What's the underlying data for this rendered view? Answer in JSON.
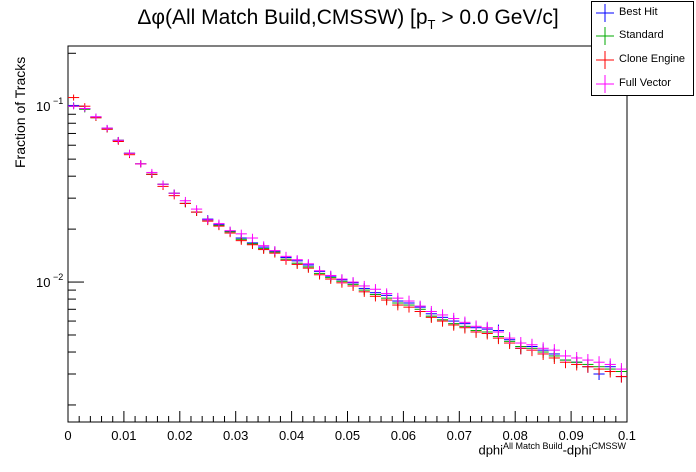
{
  "chart_data": {
    "type": "scatter",
    "title_main": "Δφ(All Match Build,CMSSW) [p",
    "title_sub": "T",
    "title_rest": " > 0.0 GeV/c]",
    "xlabel_base": "dphi",
    "xlabel_sup1": "All Match Build",
    "xlabel_mid": "-dphi",
    "xlabel_sup2": "CMSSW",
    "ylabel": "Fraction of Tracks",
    "x_ticks": [
      "0",
      "0.01",
      "0.02",
      "0.03",
      "0.04",
      "0.05",
      "0.06",
      "0.07",
      "0.08",
      "0.09",
      "0.1"
    ],
    "y_ticks": [
      "10",
      "10"
    ],
    "y_tick_exps": [
      "−1",
      "−2"
    ],
    "xlim": [
      0,
      0.1
    ],
    "ylim": [
      0.0016,
      0.22
    ],
    "log_y": true,
    "bin_width": 0.002,
    "x": [
      0.001,
      0.003,
      0.005,
      0.007,
      0.009,
      0.011,
      0.013,
      0.015,
      0.017,
      0.019,
      0.021,
      0.023,
      0.025,
      0.027,
      0.029,
      0.031,
      0.033,
      0.035,
      0.037,
      0.039,
      0.041,
      0.043,
      0.045,
      0.047,
      0.049,
      0.051,
      0.053,
      0.055,
      0.057,
      0.059,
      0.061,
      0.063,
      0.065,
      0.067,
      0.069,
      0.071,
      0.073,
      0.075,
      0.077,
      0.079,
      0.081,
      0.083,
      0.085,
      0.087,
      0.089,
      0.091,
      0.093,
      0.095,
      0.097,
      0.099
    ],
    "series": [
      {
        "name": "Best Hit",
        "color": "#0000ff",
        "values": [
          0.101,
          0.097,
          0.087,
          0.075,
          0.064,
          0.054,
          0.047,
          0.041,
          0.036,
          0.032,
          0.028,
          0.025,
          0.0228,
          0.0212,
          0.0195,
          0.0178,
          0.0167,
          0.0158,
          0.015,
          0.0138,
          0.0132,
          0.0125,
          0.0115,
          0.0108,
          0.0103,
          0.0099,
          0.0092,
          0.0087,
          0.0084,
          0.0078,
          0.0076,
          0.0072,
          0.0066,
          0.0063,
          0.006,
          0.0058,
          0.0055,
          0.0054,
          0.0053,
          0.0047,
          0.0042,
          0.0043,
          0.0041,
          0.0039,
          0.0036,
          0.0035,
          0.0033,
          0.003,
          0.0033,
          0.0029
        ]
      },
      {
        "name": "Standard",
        "color": "#00aa00",
        "values": [
          0.1,
          0.096,
          0.086,
          0.074,
          0.064,
          0.054,
          0.047,
          0.041,
          0.036,
          0.032,
          0.028,
          0.025,
          0.0225,
          0.021,
          0.0193,
          0.0175,
          0.0165,
          0.0155,
          0.0148,
          0.0135,
          0.0128,
          0.0122,
          0.0112,
          0.0106,
          0.0101,
          0.0097,
          0.009,
          0.0085,
          0.0081,
          0.0076,
          0.0074,
          0.007,
          0.0064,
          0.0061,
          0.0058,
          0.0056,
          0.0053,
          0.0052,
          0.0049,
          0.0046,
          0.0043,
          0.0042,
          0.004,
          0.0038,
          0.0036,
          0.0035,
          0.0034,
          0.0033,
          0.0032,
          0.0031
        ]
      },
      {
        "name": "Clone Engine",
        "color": "#ff0000",
        "values": [
          0.112,
          0.1,
          0.086,
          0.074,
          0.063,
          0.053,
          0.047,
          0.041,
          0.035,
          0.031,
          0.028,
          0.025,
          0.0222,
          0.0208,
          0.019,
          0.0172,
          0.0163,
          0.0153,
          0.0146,
          0.0133,
          0.0126,
          0.012,
          0.011,
          0.0104,
          0.0099,
          0.0095,
          0.0088,
          0.0083,
          0.0079,
          0.0074,
          0.0072,
          0.0068,
          0.0063,
          0.006,
          0.0057,
          0.0055,
          0.0052,
          0.0051,
          0.0048,
          0.0045,
          0.0042,
          0.0041,
          0.0039,
          0.0037,
          0.0035,
          0.0034,
          0.0033,
          0.0032,
          0.0031,
          0.0029
        ]
      },
      {
        "name": "Full Vector",
        "color": "#ff00ff",
        "values": [
          0.1,
          0.097,
          0.087,
          0.075,
          0.064,
          0.054,
          0.047,
          0.042,
          0.036,
          0.032,
          0.029,
          0.026,
          0.0226,
          0.0215,
          0.0196,
          0.0188,
          0.0178,
          0.0161,
          0.0151,
          0.014,
          0.0134,
          0.0127,
          0.0116,
          0.0109,
          0.0104,
          0.01,
          0.0095,
          0.0091,
          0.0086,
          0.0081,
          0.0078,
          0.0073,
          0.0068,
          0.0065,
          0.0062,
          0.0059,
          0.0056,
          0.0055,
          0.0052,
          0.0048,
          0.0045,
          0.0044,
          0.0042,
          0.0041,
          0.0038,
          0.0037,
          0.0036,
          0.0035,
          0.0034,
          0.0032
        ]
      }
    ],
    "legend_position": "top-right",
    "grid": false
  }
}
